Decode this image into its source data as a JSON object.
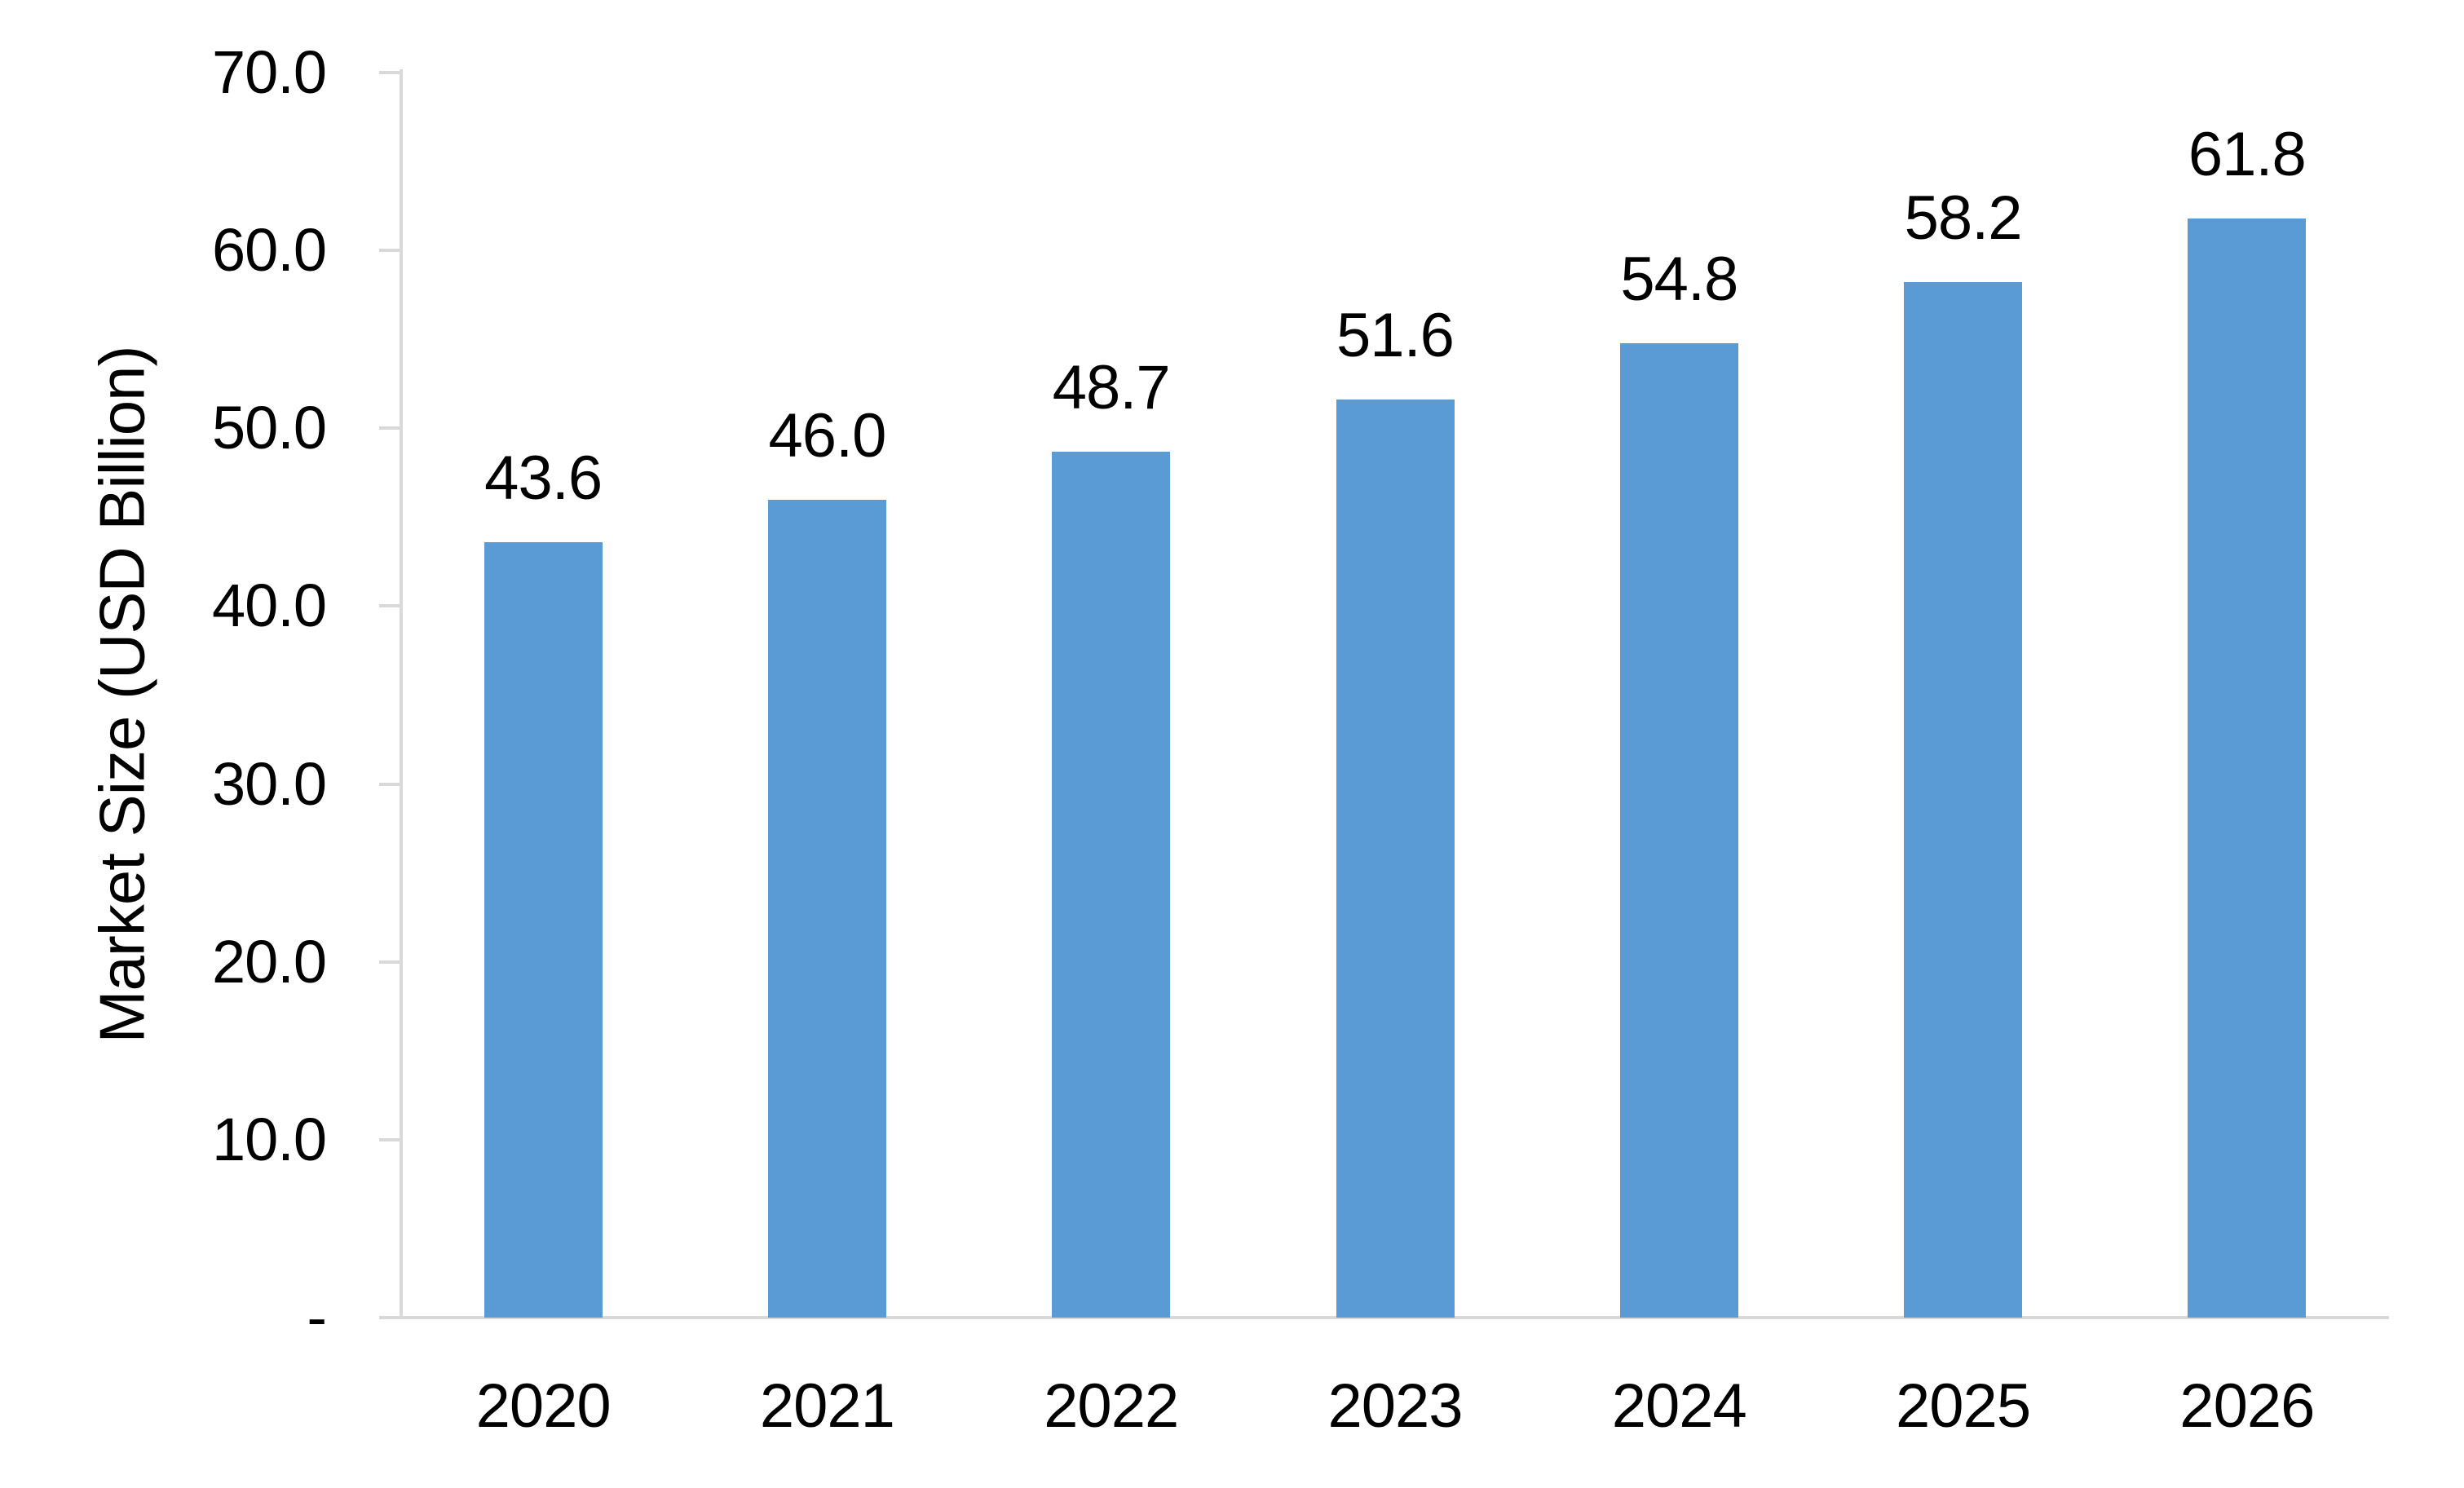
{
  "chart_data": {
    "type": "bar",
    "title": "",
    "xlabel": "",
    "ylabel": "Market Size (USD Billion)",
    "categories": [
      "2020",
      "2021",
      "2022",
      "2023",
      "2024",
      "2025",
      "2026"
    ],
    "values": [
      43.6,
      46.0,
      48.7,
      51.6,
      54.8,
      58.2,
      61.8
    ],
    "data_labels": [
      "43.6",
      "46.0",
      "48.7",
      "51.6",
      "54.8",
      "58.2",
      "61.8"
    ],
    "ylim": [
      0,
      70
    ],
    "y_ticks": [
      {
        "label": "70.0",
        "value": 70
      },
      {
        "label": "60.0",
        "value": 60
      },
      {
        "label": "50.0",
        "value": 50
      },
      {
        "label": "40.0",
        "value": 40
      },
      {
        "label": "30.0",
        "value": 30
      },
      {
        "label": "20.0",
        "value": 20
      },
      {
        "label": "10.0",
        "value": 10
      },
      {
        "label": "-",
        "value": 0
      }
    ],
    "grid": "off",
    "legend": "none",
    "bar_color": "#5B9BD5",
    "axis_color": "#D9D9D9",
    "text_color": "#000000",
    "background_color": "#FFFFFF"
  }
}
